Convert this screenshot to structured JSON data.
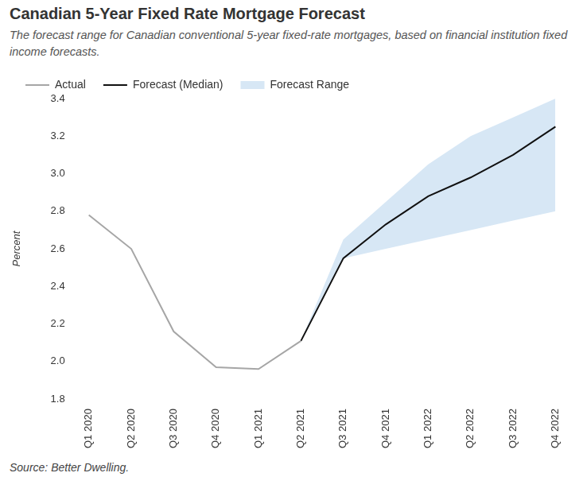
{
  "chart_data": {
    "type": "line",
    "title": "Canadian 5-Year Fixed Rate Mortgage Forecast",
    "subtitle": "The forecast range for Canadian conventional 5-year fixed-rate mortgages, based on financial institution fixed income forecasts.",
    "y_label": "Percent",
    "source": "Source: Better Dwelling.",
    "categories": [
      "Q1 2020",
      "Q2 2020",
      "Q3 2020",
      "Q4 2020",
      "Q1 2021",
      "Q2 2021",
      "Q3 2021",
      "Q4 2021",
      "Q1 2022",
      "Q2 2022",
      "Q3 2022",
      "Q4 2022"
    ],
    "series": [
      {
        "name": "Actual",
        "type": "line",
        "color": "#a6a6a6",
        "values": [
          2.78,
          2.6,
          2.16,
          1.97,
          1.96,
          2.11,
          null,
          null,
          null,
          null,
          null,
          null
        ]
      },
      {
        "name": "Forecast (Median)",
        "type": "line",
        "color": "#111111",
        "values": [
          null,
          null,
          null,
          null,
          null,
          2.11,
          2.55,
          2.73,
          2.88,
          2.98,
          3.1,
          3.25
        ]
      },
      {
        "name": "Forecast Range",
        "type": "range",
        "color": "#d7e7f5",
        "upper": [
          null,
          null,
          null,
          null,
          null,
          2.11,
          2.65,
          2.85,
          3.05,
          3.2,
          3.3,
          3.4
        ],
        "lower": [
          null,
          null,
          null,
          null,
          null,
          2.11,
          2.55,
          2.6,
          2.65,
          2.7,
          2.75,
          2.8
        ]
      }
    ],
    "ylim": [
      1.8,
      3.4
    ],
    "yticks": [
      {
        "value": 1.8,
        "label": "1.8"
      },
      {
        "value": 2.0,
        "label": "2.0"
      },
      {
        "value": 2.2,
        "label": "2.2"
      },
      {
        "value": 2.4,
        "label": "2.4"
      },
      {
        "value": 2.6,
        "label": "2.6"
      },
      {
        "value": 2.8,
        "label": "2.8"
      },
      {
        "value": 3.0,
        "label": "3.0"
      },
      {
        "value": 3.2,
        "label": "3.2"
      },
      {
        "value": 3.4,
        "label": "3.4"
      }
    ],
    "grid": false,
    "legend": "top"
  }
}
